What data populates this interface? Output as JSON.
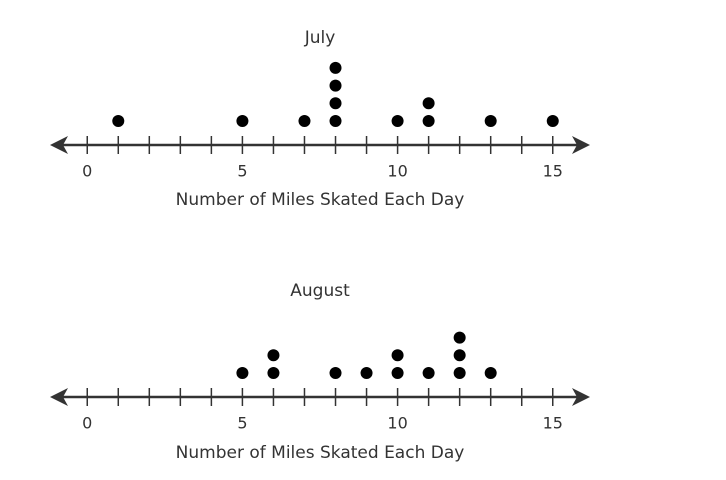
{
  "chart_data": [
    {
      "type": "dot",
      "title": "July",
      "x_label": "Number of Miles Skated Each Day",
      "x": [
        1,
        5,
        7,
        8,
        10,
        11,
        13,
        15
      ],
      "values": [
        1,
        1,
        1,
        4,
        1,
        2,
        1,
        1
      ],
      "xlim": [
        -1.2,
        16.2
      ],
      "xticks": [
        0,
        5,
        10,
        15
      ],
      "minor_xticks": [
        1,
        2,
        3,
        4,
        6,
        7,
        8,
        9,
        11,
        12,
        13,
        14
      ],
      "color": "#000000"
    },
    {
      "type": "dot",
      "title": "August",
      "x_label": "Number of Miles Skated Each Day",
      "x": [
        5,
        6,
        8,
        9,
        10,
        11,
        12,
        13
      ],
      "values": [
        1,
        2,
        1,
        1,
        2,
        1,
        3,
        1
      ],
      "xlim": [
        -1.2,
        16.2
      ],
      "xticks": [
        0,
        5,
        10,
        15
      ],
      "minor_xticks": [
        1,
        2,
        3,
        4,
        6,
        7,
        8,
        9,
        11,
        12,
        13,
        14
      ],
      "color": "#000000"
    }
  ]
}
